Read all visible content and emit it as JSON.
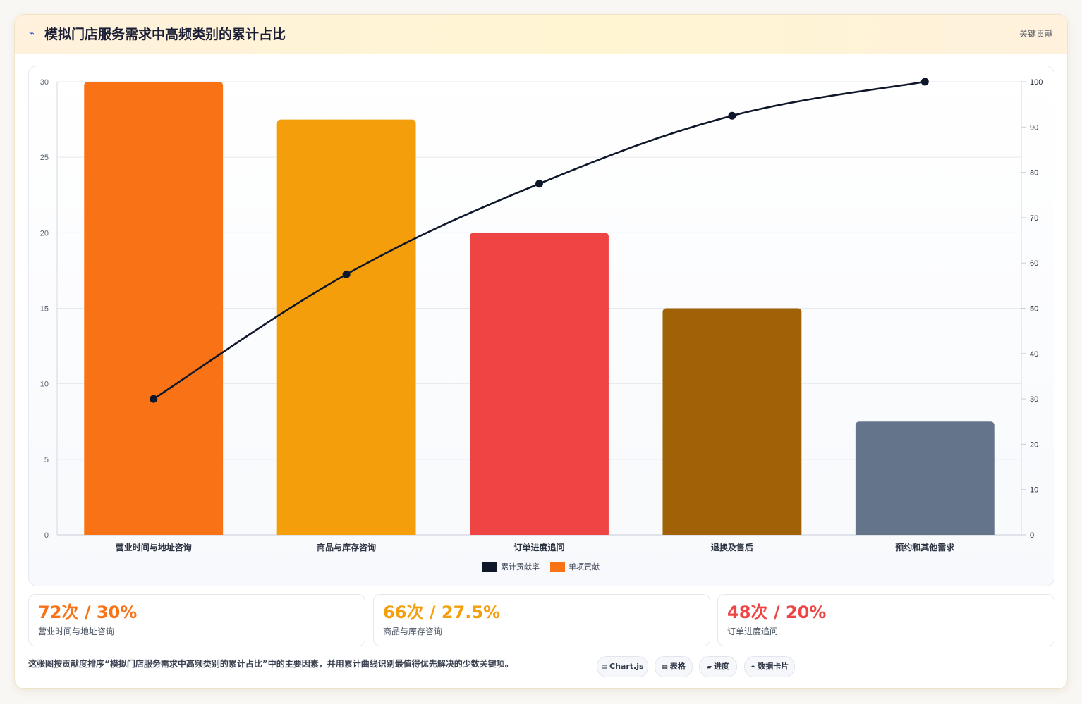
{
  "header": {
    "icon": "⌁",
    "title": "模拟门店服务需求中高频类别的累计占比",
    "tag": "关键贡献"
  },
  "chart_data": {
    "type": "bar",
    "categories": [
      "营业时间与地址咨询",
      "商品与库存咨询",
      "订单进度追问",
      "退换及售后",
      "预约和其他需求"
    ],
    "series": [
      {
        "name": "单项贡献",
        "kind": "bar",
        "axis": "left",
        "values": [
          30,
          27.5,
          20,
          15,
          7.5
        ]
      },
      {
        "name": "累计贡献率",
        "kind": "line",
        "axis": "right",
        "values": [
          30,
          57.5,
          77.5,
          92.5,
          100
        ]
      }
    ],
    "bar_colors": [
      "#f97316",
      "#f59e0b",
      "#ef4444",
      "#a16207",
      "#64748b"
    ],
    "line_color": "#0f172a",
    "y_left": {
      "min": 0,
      "max": 30,
      "ticks": [
        0,
        5,
        10,
        15,
        20,
        25,
        30
      ]
    },
    "y_right": {
      "min": 0,
      "max": 100,
      "ticks": [
        0,
        10,
        20,
        30,
        40,
        50,
        60,
        70,
        80,
        90,
        100
      ]
    },
    "legend": [
      {
        "name": "累计贡献率",
        "color": "#0f172a"
      },
      {
        "name": "单项贡献",
        "color": "#f97316"
      }
    ],
    "legend_position": "bottom",
    "grid": true
  },
  "stats": [
    {
      "value": "72次 / 30%",
      "label": "营业时间与地址咨询",
      "color": "#f97316"
    },
    {
      "value": "66次 / 27.5%",
      "label": "商品与库存咨询",
      "color": "#f59e0b"
    },
    {
      "value": "48次 / 20%",
      "label": "订单进度追问",
      "color": "#ef4444"
    }
  ],
  "footnote": "这张图按贡献度排序“模拟门店服务需求中高频类别的累计占比”中的主要因素，并用累计曲线识别最值得优先解决的少数关键项。",
  "chips": [
    {
      "icon": "▤",
      "label": "Chart.js"
    },
    {
      "icon": "▦",
      "label": "表格"
    },
    {
      "icon": "▰",
      "label": "进度"
    },
    {
      "icon": "✦",
      "label": "数据卡片"
    }
  ]
}
